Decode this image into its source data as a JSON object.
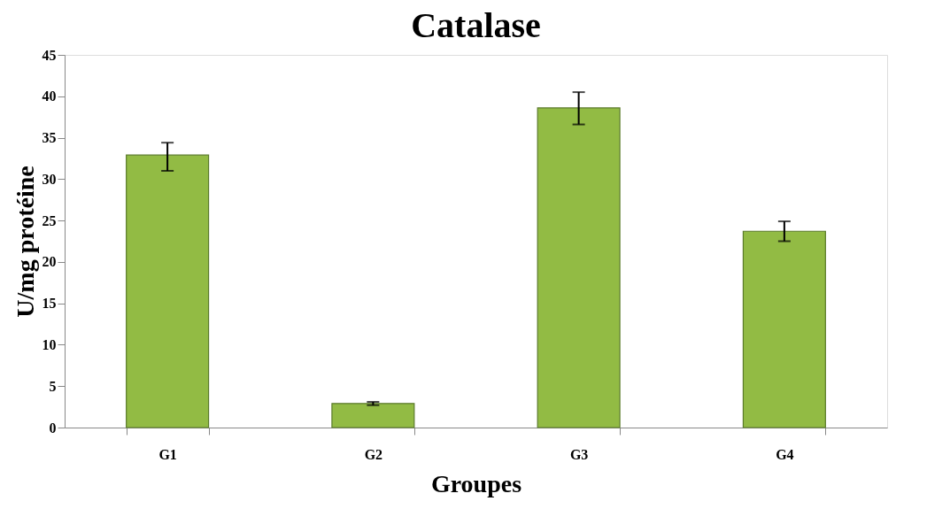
{
  "chart_data": {
    "type": "bar",
    "title": "Catalase",
    "xlabel": "Groupes",
    "ylabel": "U/mg protéine",
    "categories": [
      "G1",
      "G2",
      "G3",
      "G4"
    ],
    "values": [
      32.9,
      2.9,
      38.6,
      23.7
    ],
    "errors": [
      [
        31.0,
        34.4
      ],
      0.2,
      [
        36.6,
        40.5
      ],
      1.2
    ],
    "color": "#92bb44",
    "ylim": [
      0,
      45
    ],
    "yticks": [
      0,
      5,
      10,
      15,
      20,
      25,
      30,
      35,
      40,
      45
    ],
    "grid": false
  }
}
